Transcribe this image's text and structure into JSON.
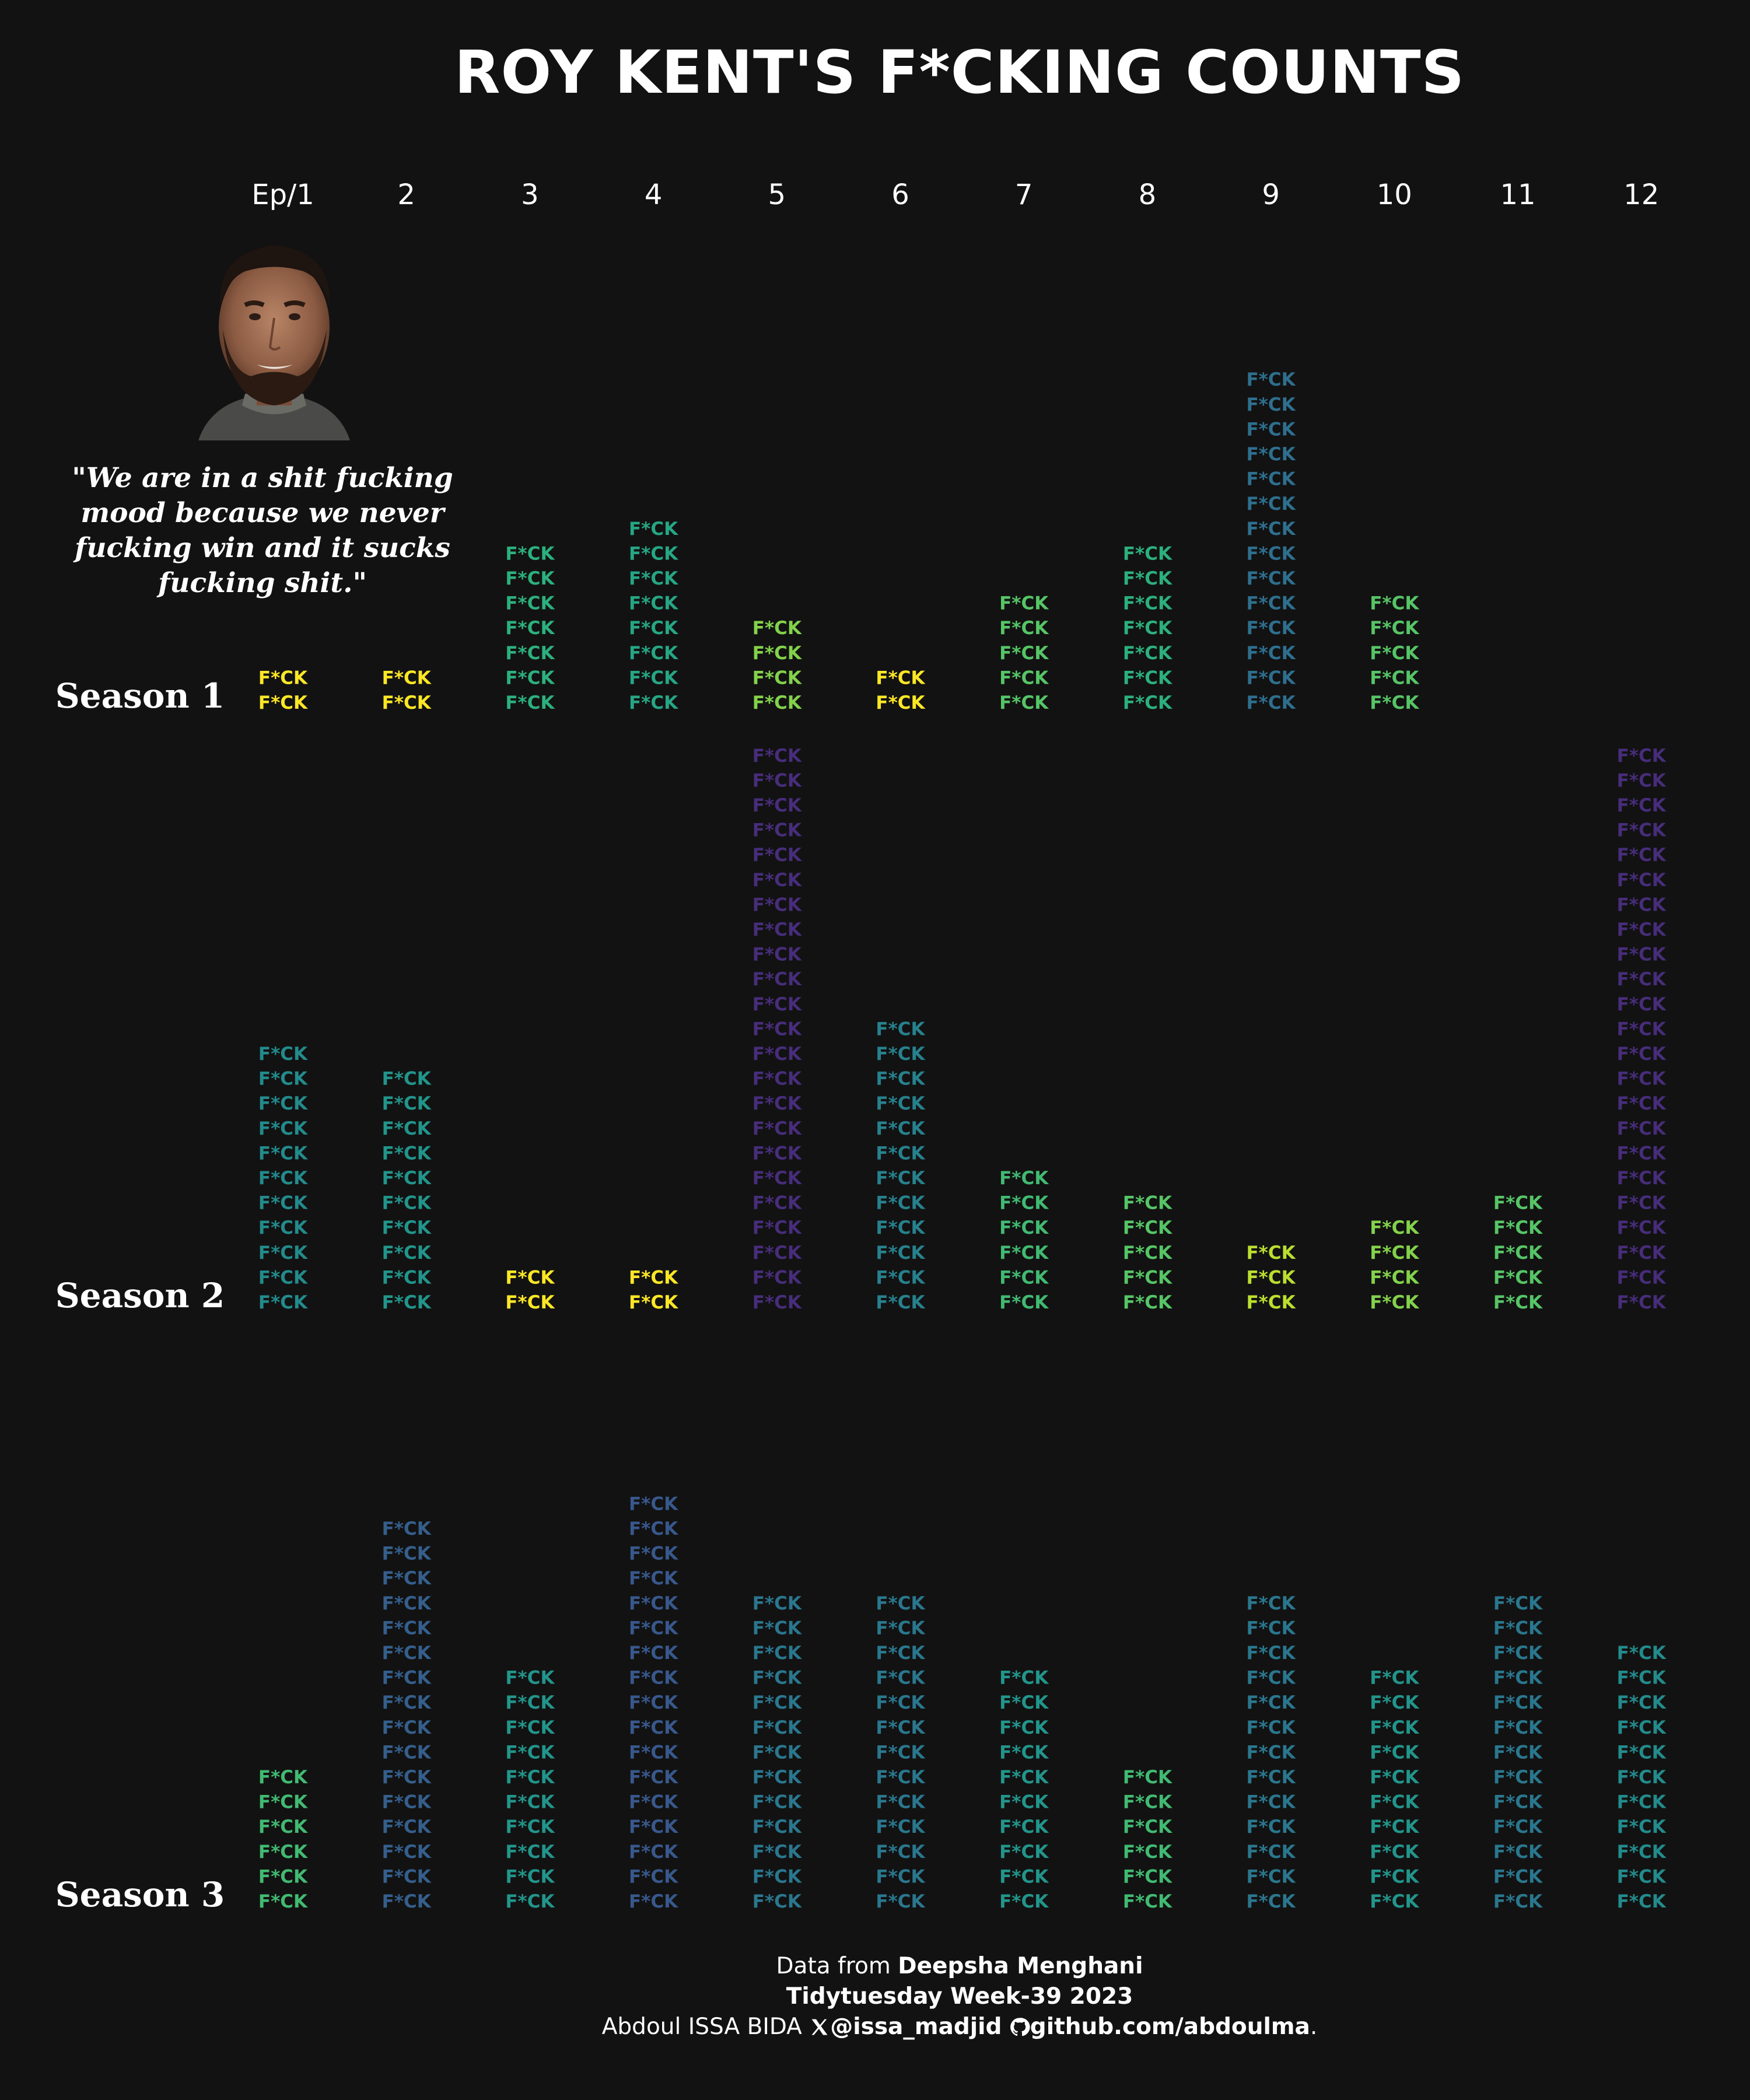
{
  "title": "ROY KENT'S F*CKING COUNTS",
  "quote": "\"We are in a shit fucking mood because we never fucking win and it sucks fucking shit.\"",
  "photo_alt": "roy-kent-photo",
  "footer": {
    "data_prefix": "Data from ",
    "data_source": "Deepsha Menghani",
    "week": "Tidytuesday Week-39 2023",
    "author": "Abdoul ISSA BIDA ",
    "twitter": "@issa_madjid",
    "github": "github.com/abdoulma",
    "end": "."
  },
  "chart_data": {
    "type": "pictogram",
    "title": "ROY KENT'S F*CKING COUNTS",
    "unit_label": "F*CK",
    "episodes": [
      "Ep/1",
      "2",
      "3",
      "4",
      "5",
      "6",
      "7",
      "8",
      "9",
      "10",
      "11",
      "12"
    ],
    "seasons": [
      "Season 1",
      "Season 2",
      "Season 3"
    ],
    "series": [
      {
        "name": "Season 1",
        "values": [
          2,
          2,
          7,
          8,
          4,
          2,
          5,
          7,
          14,
          5,
          0,
          0
        ]
      },
      {
        "name": "Season 2",
        "values": [
          11,
          10,
          2,
          2,
          23,
          12,
          6,
          5,
          3,
          4,
          5,
          23
        ]
      },
      {
        "name": "Season 3",
        "values": [
          6,
          16,
          10,
          17,
          13,
          13,
          10,
          6,
          13,
          10,
          13,
          11
        ]
      }
    ],
    "color_scale": {
      "type": "viridis",
      "low": "#fde725",
      "high": "#472d7b",
      "range": [
        2,
        23
      ]
    }
  }
}
